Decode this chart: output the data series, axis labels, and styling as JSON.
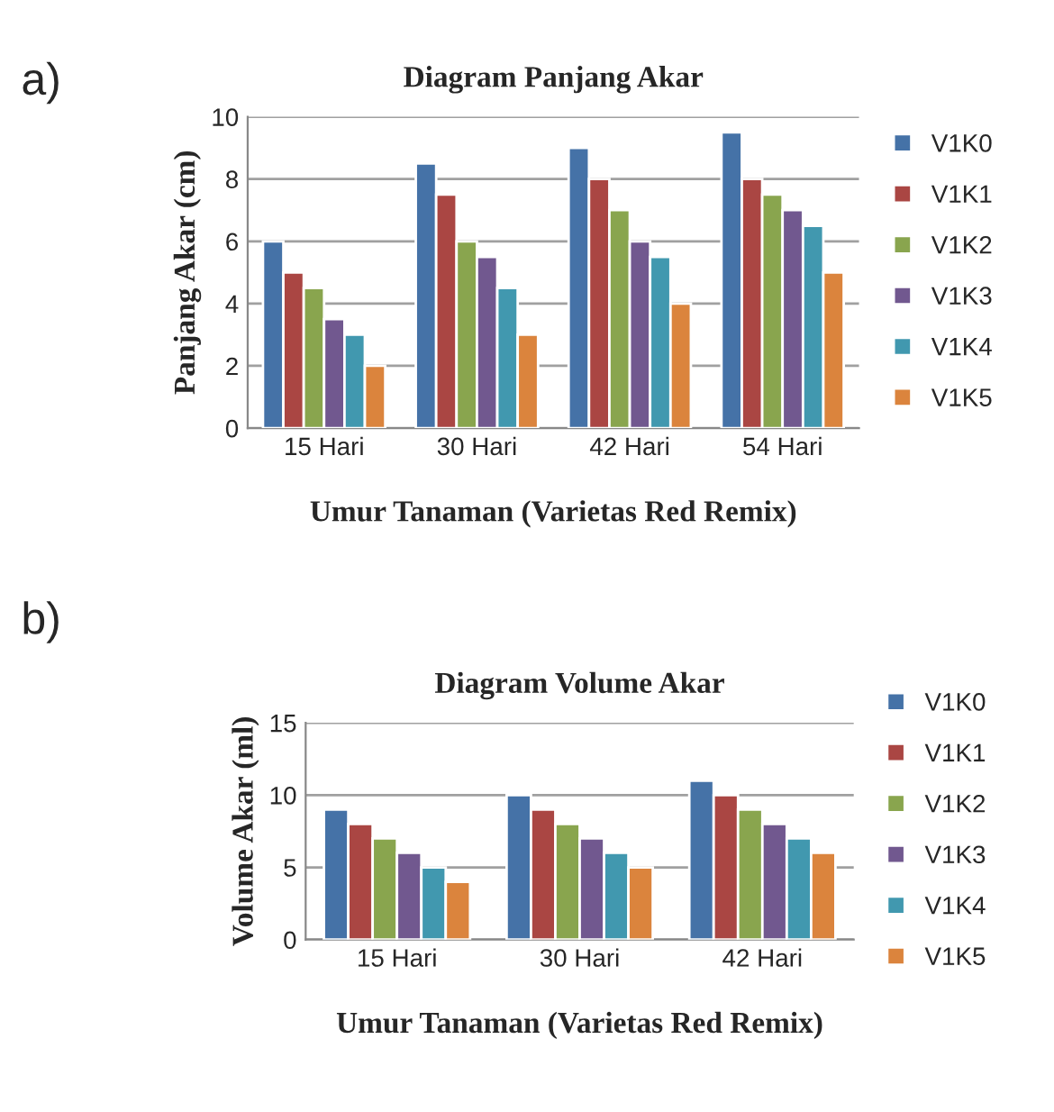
{
  "chart_data": [
    {
      "type": "bar",
      "title": "Diagram Panjang Akar",
      "xlabel": "Umur Tanaman (Varietas Red Remix)",
      "ylabel": "Panjang Akar (cm)",
      "annotations": [
        "a)"
      ],
      "categories": [
        "15 Hari",
        "30 Hari",
        "42 Hari",
        "54 Hari"
      ],
      "series": [
        {
          "name": "V1K0",
          "color": "#4572a7",
          "values": [
            6,
            8.5,
            9,
            9.5
          ]
        },
        {
          "name": "V1K1",
          "color": "#aa4643",
          "values": [
            5,
            7.5,
            8,
            8
          ]
        },
        {
          "name": "V1K2",
          "color": "#89a54e",
          "values": [
            4.5,
            6,
            7,
            7.5
          ]
        },
        {
          "name": "V1K3",
          "color": "#71588f",
          "values": [
            3.5,
            5.5,
            6,
            7
          ]
        },
        {
          "name": "V1K4",
          "color": "#4198af",
          "values": [
            3,
            4.5,
            5.5,
            6.5
          ]
        },
        {
          "name": "V1K5",
          "color": "#db843d",
          "values": [
            2,
            3,
            4,
            5
          ]
        }
      ],
      "ylim": [
        0,
        10
      ],
      "yticks": [
        0,
        2,
        4,
        6,
        8,
        10
      ],
      "grid": "y",
      "legend": "right"
    },
    {
      "type": "bar",
      "title": "Diagram Volume Akar",
      "xlabel": "Umur Tanaman (Varietas Red Remix)",
      "ylabel": "Volume Akar (ml)",
      "annotations": [
        "b)"
      ],
      "categories": [
        "15 Hari",
        "30 Hari",
        "42 Hari"
      ],
      "series": [
        {
          "name": "V1K0",
          "color": "#4572a7",
          "values": [
            9,
            10,
            11
          ]
        },
        {
          "name": "V1K1",
          "color": "#aa4643",
          "values": [
            8,
            9,
            10
          ]
        },
        {
          "name": "V1K2",
          "color": "#89a54e",
          "values": [
            7,
            8,
            9
          ]
        },
        {
          "name": "V1K3",
          "color": "#71588f",
          "values": [
            6,
            7,
            8
          ]
        },
        {
          "name": "V1K4",
          "color": "#4198af",
          "values": [
            5,
            6,
            7
          ]
        },
        {
          "name": "V1K5",
          "color": "#db843d",
          "values": [
            4,
            5,
            6
          ]
        }
      ],
      "ylim": [
        0,
        15
      ],
      "yticks": [
        0,
        5,
        10,
        15
      ],
      "grid": "y",
      "legend": "right"
    }
  ]
}
